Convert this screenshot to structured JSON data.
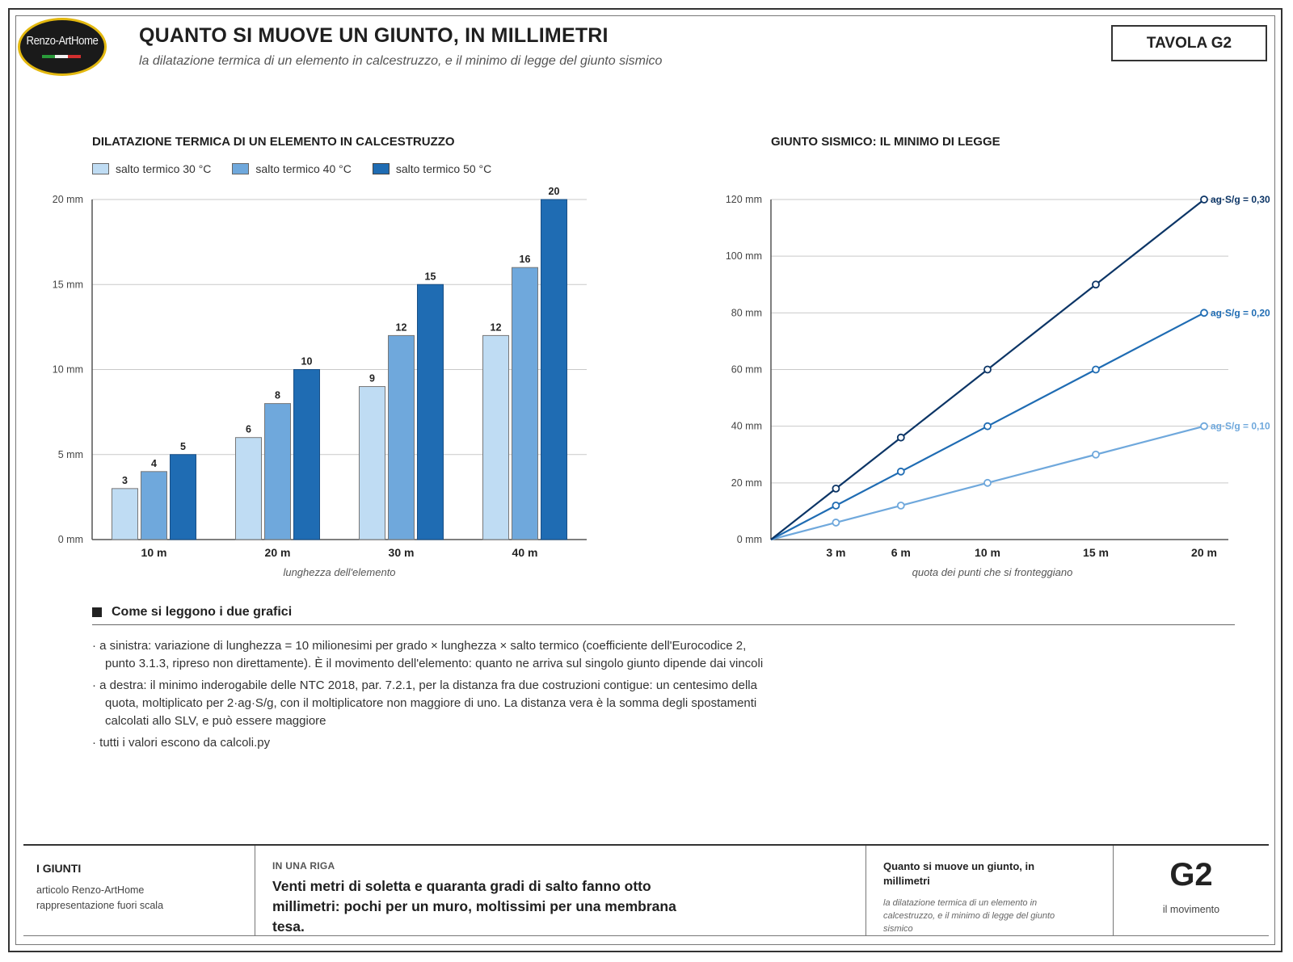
{
  "logo": {
    "text": "Renzo-ArtHome"
  },
  "header": {
    "title": "QUANTO SI MUOVE UN GIUNTO, IN MILLIMETRI",
    "subtitle": "la dilatazione termica di un elemento in calcestruzzo, e il minimo di legge del giunto sismico",
    "tavola": "TAVOLA G2"
  },
  "colors": {
    "light": "#bfdcf3",
    "mid": "#6fa8dc",
    "dark": "#1f6cb3",
    "navy": "#0c3566",
    "grid": "#c9c9c9",
    "axis": "#555555"
  },
  "chart_data": [
    {
      "type": "bar",
      "title": "DILATAZIONE TERMICA DI UN ELEMENTO IN CALCESTRUZZO",
      "xlabel": "lunghezza dell'elemento",
      "categories": [
        "10 m",
        "20 m",
        "30 m",
        "40 m"
      ],
      "series": [
        {
          "name": "salto termico 30 °C",
          "values": [
            3,
            6,
            9,
            12
          ],
          "color": "#bfdcf3"
        },
        {
          "name": "salto termico 40 °C",
          "values": [
            4,
            8,
            12,
            16
          ],
          "color": "#6fa8dc"
        },
        {
          "name": "salto termico 50 °C",
          "values": [
            5,
            10,
            15,
            20
          ],
          "color": "#1f6cb3"
        }
      ],
      "ylim": [
        0,
        20
      ],
      "yticks": [
        0,
        5,
        10,
        15,
        20
      ],
      "ytick_labels": [
        "0 mm",
        "5 mm",
        "10 mm",
        "15 mm",
        "20 mm"
      ],
      "grid": true,
      "legend": "top-left"
    },
    {
      "type": "line",
      "title": "GIUNTO SISMICO: IL MINIMO DI LEGGE",
      "xlabel": "quota dei punti che si fronteggiano",
      "x": [
        0,
        3,
        6,
        10,
        15,
        20
      ],
      "xticks": [
        3,
        6,
        10,
        15,
        20
      ],
      "xtick_labels": [
        "3 m",
        "6 m",
        "10 m",
        "15 m",
        "20 m"
      ],
      "xlim": [
        0,
        20
      ],
      "series": [
        {
          "name": "ag·S/g = 0,10",
          "values": [
            0,
            6,
            12,
            20,
            30,
            40
          ],
          "color": "#6fa8dc"
        },
        {
          "name": "ag·S/g = 0,20",
          "values": [
            0,
            12,
            24,
            40,
            60,
            80
          ],
          "color": "#1f6cb3"
        },
        {
          "name": "ag·S/g = 0,30",
          "values": [
            0,
            18,
            36,
            60,
            90,
            120
          ],
          "color": "#0c3566"
        }
      ],
      "ylim": [
        0,
        120
      ],
      "yticks": [
        0,
        20,
        40,
        60,
        80,
        100,
        120
      ],
      "ytick_labels": [
        "0 mm",
        "20 mm",
        "40 mm",
        "60 mm",
        "80 mm",
        "100 mm",
        "120 mm"
      ],
      "grid": true,
      "legend": "line-ends"
    }
  ],
  "notes": {
    "heading": "Come si leggono i due grafici",
    "items": [
      "· a sinistra: variazione di lunghezza = 10 milionesimi per grado × lunghezza × salto termico (coefficiente dell'Eurocodice 2, punto 3.1.3, ripreso non direttamente). È il movimento dell'elemento: quanto ne arriva sul singolo giunto dipende dai vincoli",
      "· a destra: il minimo inderogabile delle NTC 2018, par. 7.2.1, per la distanza fra due costruzioni contigue: un centesimo della quota, moltiplicato per 2·ag·S/g, con il moltiplicatore non maggiore di uno. La distanza vera è la somma degli spostamenti calcolati allo SLV, e può essere maggiore",
      "· tutti i valori escono da calcoli.py"
    ]
  },
  "footer": {
    "series": "I GIUNTI",
    "article": "articolo Renzo-ArtHome",
    "scale": "rappresentazione fuori scala",
    "riga_label": "IN UNA RIGA",
    "riga": "Venti metri di soletta e quaranta gradi di salto fanno otto millimetri: pochi per un muro, moltissimi per una membrana tesa.",
    "tavola_title": "Quanto si muove un giunto, in millimetri",
    "tavola_subtitle": "la dilatazione termica di un elemento in calcestruzzo, e il minimo di legge del giunto sismico",
    "code": "G2",
    "code_label": "il movimento"
  }
}
